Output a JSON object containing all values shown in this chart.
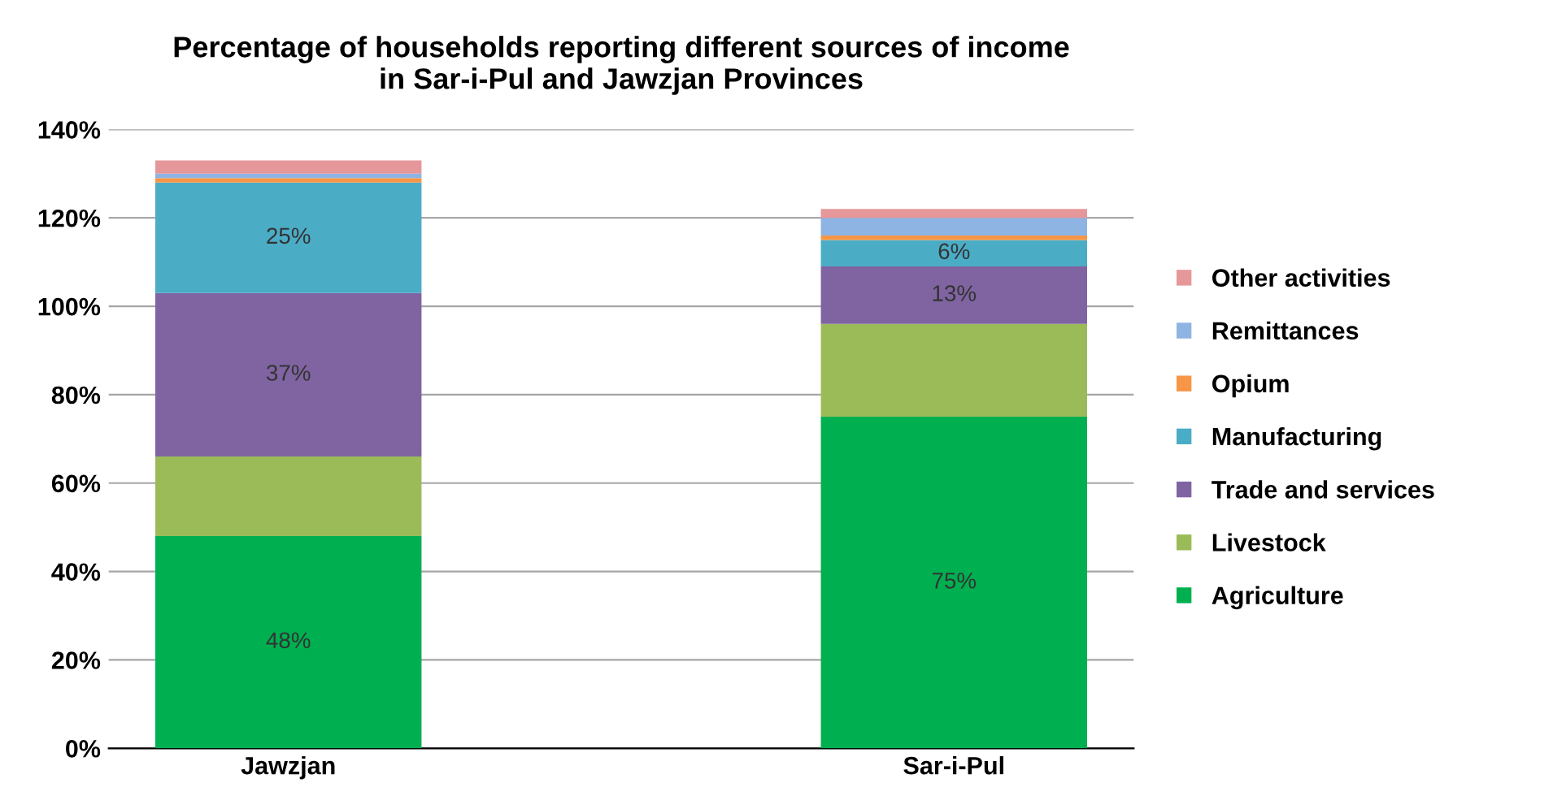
{
  "chart_data": {
    "type": "bar",
    "stacked": true,
    "title": "Percentage of households reporting different sources of income\nin Sar-i-Pul and Jawzjan Provinces",
    "categories": [
      "Jawzjan",
      "Sar-i-Pul"
    ],
    "series": [
      {
        "name": "Agriculture",
        "color": "#00b050",
        "values": [
          48,
          75
        ],
        "value_labels": [
          "48%",
          "75%"
        ]
      },
      {
        "name": "Livestock",
        "color": "#9bbb59",
        "values": [
          18,
          21
        ]
      },
      {
        "name": "Trade and services",
        "color": "#8064a2",
        "values": [
          37,
          13
        ],
        "value_labels": [
          "37%",
          "13%"
        ]
      },
      {
        "name": "Manufacturing",
        "color": "#4bacc6",
        "values": [
          25,
          6
        ],
        "value_labels": [
          "25%",
          "6%"
        ]
      },
      {
        "name": "Opium",
        "color": "#f79646",
        "values": [
          1,
          1
        ]
      },
      {
        "name": "Remittances",
        "color": "#8eb4e3",
        "values": [
          1,
          4
        ]
      },
      {
        "name": "Other activities",
        "color": "#e6979a",
        "values": [
          3,
          2
        ]
      }
    ],
    "ylim": [
      0,
      140
    ],
    "yticks": [
      {
        "value": 0,
        "label": "0%"
      },
      {
        "value": 20,
        "label": "20%"
      },
      {
        "value": 40,
        "label": "40%"
      },
      {
        "value": 60,
        "label": "60%"
      },
      {
        "value": 80,
        "label": "80%"
      },
      {
        "value": 100,
        "label": "100%"
      },
      {
        "value": 120,
        "label": "120%"
      },
      {
        "value": 140,
        "label": "140%"
      }
    ],
    "grid": "y",
    "legend": "right"
  }
}
